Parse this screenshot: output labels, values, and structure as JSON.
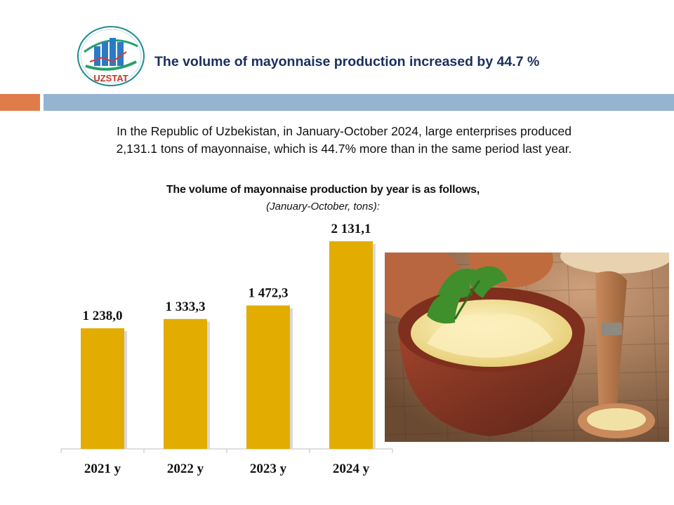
{
  "header": {
    "logo_text": "UZSTAT",
    "title": "The volume of mayonnaise production increased by 44.7 %"
  },
  "intro": {
    "line1": "In the Republic of Uzbekistan, in January-October 2024, large enterprises produced",
    "line2": "2,131.1 tons of mayonnaise, which is 44.7% more than in the same period last year."
  },
  "colors": {
    "bar": "#e3ac00",
    "title": "#1b2f5e",
    "accent_orange": "#e07b4a",
    "accent_blue": "#94b4d2"
  },
  "chart_data": {
    "type": "bar",
    "title": "The volume of mayonnaise production by year is as follows,",
    "subtitle": "(January-October, tons):",
    "categories": [
      "2021 y",
      "2022 y",
      "2023 y",
      "2024 y"
    ],
    "values": [
      1238.0,
      1333.3,
      1472.3,
      2131.1
    ],
    "value_labels": [
      "1 238,0",
      "1 333,3",
      "1 472,3",
      "2 131,1"
    ],
    "ylim": [
      0,
      2131.1
    ],
    "grid": false,
    "legend": "none"
  },
  "image": {
    "subject": "bowl of mayonnaise with parsley and wooden spoon"
  }
}
